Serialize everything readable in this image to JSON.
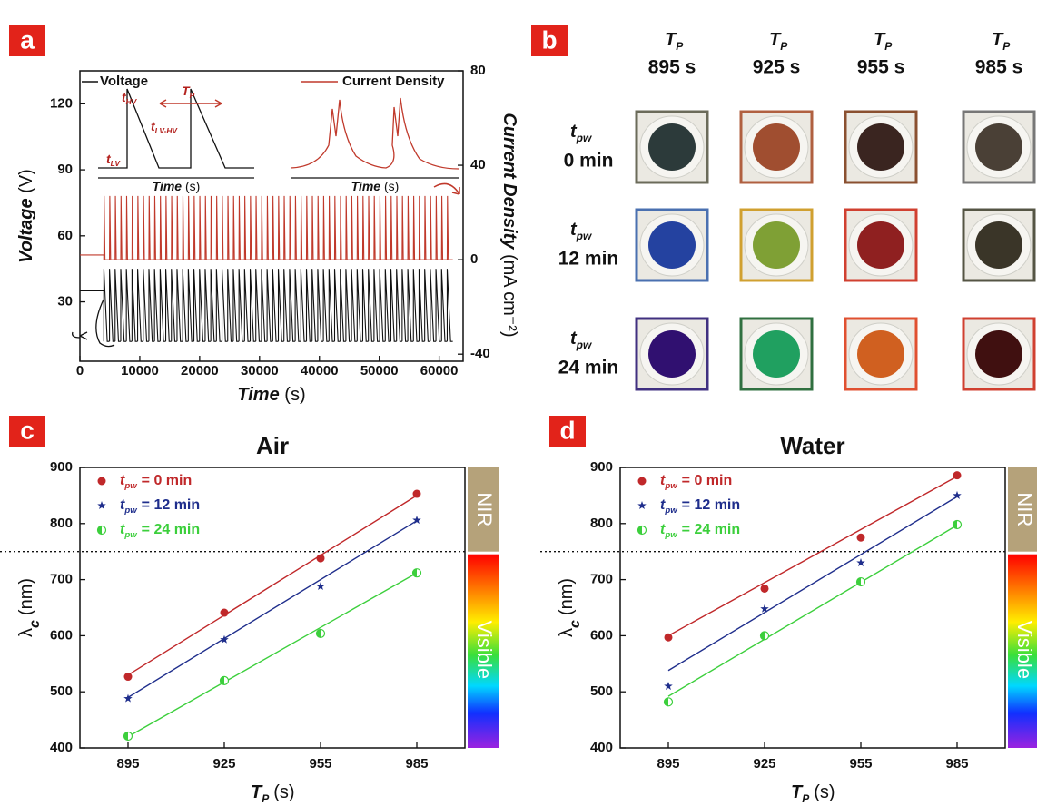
{
  "chart_data": [
    {
      "type": "line",
      "label": "a",
      "x_label": "Time",
      "x_unit": "(s)",
      "y_label": "Voltage",
      "y_unit": "(V)",
      "y2_label": "Current Density",
      "y2_unit": "(mA cm⁻²)",
      "xlim": [
        0,
        64000
      ],
      "xticks": [
        0,
        10000,
        20000,
        30000,
        40000,
        50000,
        60000
      ],
      "ylim": [
        3,
        135
      ],
      "yticks": [
        30,
        60,
        90,
        120
      ],
      "y2lim": [
        -43,
        80
      ],
      "y2ticks": [
        -40,
        0,
        40,
        80
      ],
      "series": [
        {
          "name": "Voltage",
          "color": "#111111",
          "axis": "y",
          "initial": 35,
          "start": 4000,
          "end": 62500,
          "period": 940,
          "low": 12,
          "high": 45
        },
        {
          "name": "Current Density",
          "color": "#c0392b",
          "axis": "y2",
          "initial": 2,
          "start": 4000,
          "end": 62500,
          "period": 940,
          "low": 0,
          "high": 27
        }
      ],
      "insets": {
        "x_label": "Time",
        "x_unit": "(s)",
        "markers": [
          {
            "symbol": "t",
            "sub": "HV"
          },
          {
            "symbol": "T",
            "sub": "P"
          },
          {
            "symbol": "t",
            "sub": "LV-HV"
          },
          {
            "symbol": "t",
            "sub": "LV"
          }
        ]
      }
    },
    {
      "type": "image-grid",
      "label": "b",
      "column_symbol": {
        "symbol": "T",
        "sub": "P"
      },
      "columns": [
        "895 s",
        "925 s",
        "955 s",
        "985 s"
      ],
      "row_symbol": {
        "symbol": "t",
        "sub": "pw"
      },
      "rows": [
        "0 min",
        "12 min",
        "24 min"
      ],
      "cells": [
        [
          {
            "border": "#6b6b5a",
            "dot": "#2c3a3a"
          },
          {
            "border": "#b06040",
            "dot": "#a04e30"
          },
          {
            "border": "#8a5030",
            "dot": "#3a2520"
          },
          {
            "border": "#777777",
            "dot": "#4a4036"
          }
        ],
        [
          {
            "border": "#4a70b0",
            "dot": "#2442a0"
          },
          {
            "border": "#d0a030",
            "dot": "#7fa035"
          },
          {
            "border": "#d04030",
            "dot": "#8f2020"
          },
          {
            "border": "#555544",
            "dot": "#3a3528"
          }
        ],
        [
          {
            "border": "#403080",
            "dot": "#301070"
          },
          {
            "border": "#307040",
            "dot": "#20a060"
          },
          {
            "border": "#e05030",
            "dot": "#d06020"
          },
          {
            "border": "#d04030",
            "dot": "#401010"
          }
        ]
      ]
    },
    {
      "type": "scatter",
      "label": "c",
      "title": "Air",
      "x_label": {
        "symbol": "T",
        "sub": "P"
      },
      "x_unit": "(s)",
      "y_label": {
        "symbol": "λ",
        "sub": "c"
      },
      "y_unit": "(nm)",
      "xlim": [
        880,
        1000
      ],
      "xticks": [
        895,
        925,
        955,
        985
      ],
      "ylim": [
        400,
        900
      ],
      "yticks": [
        400,
        500,
        600,
        700,
        800,
        900
      ],
      "x": [
        895,
        925,
        955,
        985
      ],
      "legend": "upper left",
      "hline": 750,
      "bands": [
        {
          "label": "NIR",
          "from": 750,
          "to": 900,
          "color": "#b5a27a"
        },
        {
          "label": "Visible",
          "from": 400,
          "to": 750,
          "color": "spectrum"
        }
      ],
      "series": [
        {
          "symbol": "t",
          "sub": "pw",
          "name": "= 0 min",
          "color": "#c0282a",
          "marker": "circle",
          "values": [
            527,
            641,
            738,
            853
          ],
          "fit": {
            "x": [
              895,
              985
            ],
            "values": [
              530,
              850
            ]
          }
        },
        {
          "symbol": "t",
          "sub": "pw",
          "name": "= 12 min",
          "color": "#1f2e8c",
          "marker": "star",
          "values": [
            488,
            593,
            688,
            806
          ],
          "fit": {
            "x": [
              895,
              985
            ],
            "values": [
              490,
              805
            ]
          }
        },
        {
          "symbol": "t",
          "sub": "pw",
          "name": "= 24 min",
          "color": "#3ccf3c",
          "marker": "half",
          "values": [
            421,
            520,
            604,
            712
          ],
          "fit": {
            "x": [
              895,
              985
            ],
            "values": [
              420,
              712
            ]
          }
        }
      ]
    },
    {
      "type": "scatter",
      "label": "d",
      "title": "Water",
      "x_label": {
        "symbol": "T",
        "sub": "P"
      },
      "x_unit": "(s)",
      "y_label": {
        "symbol": "λ",
        "sub": "c"
      },
      "y_unit": "(nm)",
      "xlim": [
        880,
        1000
      ],
      "xticks": [
        895,
        925,
        955,
        985
      ],
      "ylim": [
        400,
        900
      ],
      "yticks": [
        400,
        500,
        600,
        700,
        800,
        900
      ],
      "x": [
        895,
        925,
        955,
        985
      ],
      "legend": "upper left",
      "hline": 750,
      "bands": [
        {
          "label": "NIR",
          "from": 750,
          "to": 900,
          "color": "#b5a27a"
        },
        {
          "label": "Visible",
          "from": 400,
          "to": 750,
          "color": "spectrum"
        }
      ],
      "series": [
        {
          "symbol": "t",
          "sub": "pw",
          "name": "= 0 min",
          "color": "#c0282a",
          "marker": "circle",
          "values": [
            597,
            684,
            775,
            886
          ],
          "fit": {
            "x": [
              895,
              985
            ],
            "values": [
              600,
              884
            ]
          }
        },
        {
          "symbol": "t",
          "sub": "pw",
          "name": "= 12 min",
          "color": "#1f2e8c",
          "marker": "star",
          "values": [
            510,
            648,
            730,
            850
          ],
          "fit": {
            "x": [
              895,
              985
            ],
            "values": [
              538,
              848
            ]
          }
        },
        {
          "symbol": "t",
          "sub": "pw",
          "name": "= 24 min",
          "color": "#3ccf3c",
          "marker": "half",
          "values": [
            482,
            600,
            696,
            798
          ],
          "fit": {
            "x": [
              895,
              985
            ],
            "values": [
              492,
              797
            ]
          }
        }
      ]
    }
  ]
}
